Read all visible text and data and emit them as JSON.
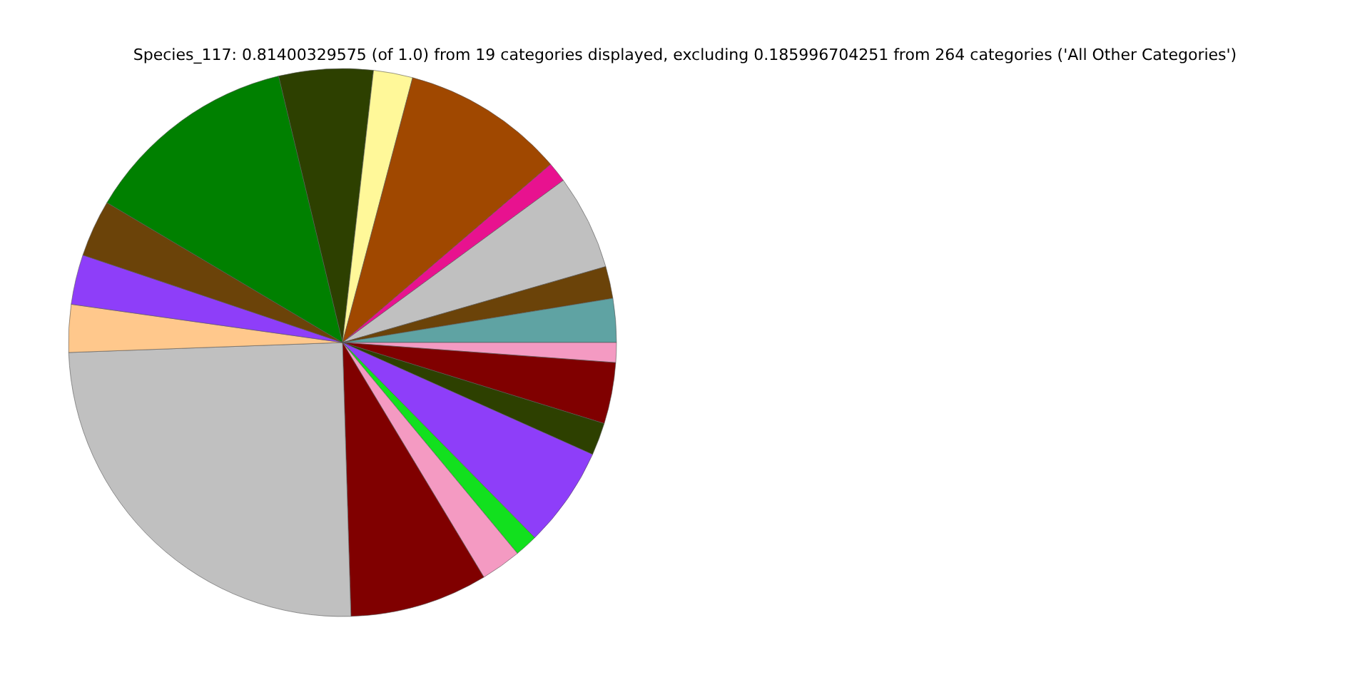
{
  "chart_data": {
    "type": "pie",
    "title": "Species_117: 0.81400329575 (of 1.0) from 19 categories displayed, excluding 0.185996704251 from 264 categories ('All Other Categories')",
    "categories": [
      null,
      null,
      null,
      null,
      null,
      null,
      null,
      null,
      null,
      null,
      null,
      null,
      null,
      null,
      null,
      null,
      null,
      null,
      null
    ],
    "values": [
      5.56,
      2.31,
      9.61,
      1.19,
      5.61,
      1.89,
      2.58,
      1.17,
      3.61,
      1.92,
      5.92,
      1.36,
      2.39,
      8.14,
      24.91,
      2.81,
      2.94,
      3.36,
      12.72
    ],
    "colors": [
      "#2d4000",
      "#fff899",
      "#a04800",
      "#e8128f",
      "#c0c0c0",
      "#6b4309",
      "#5fa3a3",
      "#f49ac2",
      "#800000",
      "#2d4000",
      "#8e3ef9",
      "#12e01e",
      "#f49ac2",
      "#800000",
      "#c0c0c0",
      "#ffc88c",
      "#8e3ef9",
      "#6b4309",
      "#008000"
    ]
  }
}
